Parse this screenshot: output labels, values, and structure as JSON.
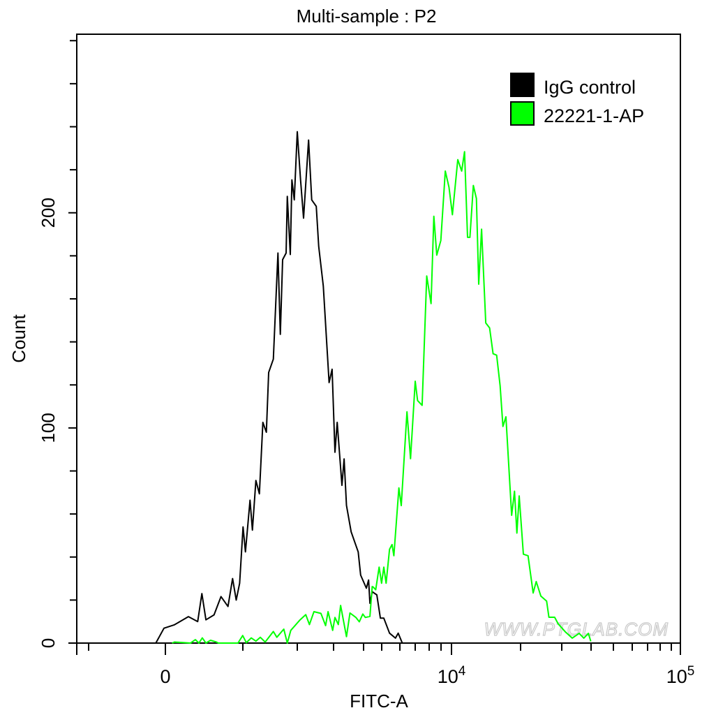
{
  "chart_data": {
    "type": "line",
    "title": "Multi-sample : P2",
    "xlabel": "FITC-A",
    "ylabel": "Count",
    "x_scale": "biexponential",
    "ylim": [
      0,
      283
    ],
    "xlim": [
      -1200,
      100000
    ],
    "grid": false,
    "legend_position": "top-right",
    "y_ticks_major": [
      0,
      100,
      200
    ],
    "y_tick_labels": [
      "0",
      "100",
      "200"
    ],
    "y_ticks_minor": [
      20,
      40,
      60,
      80,
      120,
      140,
      160,
      180,
      220,
      240,
      260,
      280
    ],
    "x_ticks_major": [
      0,
      10000,
      100000
    ],
    "x_tick_labels": [
      {
        "base": "0",
        "exp": ""
      },
      {
        "base": "10",
        "exp": "4"
      },
      {
        "base": "10",
        "exp": "5"
      }
    ],
    "x_ticks_minor": [
      -1000,
      1000,
      2000,
      3000,
      4000,
      5000,
      6000,
      7000,
      8000,
      9000,
      20000,
      30000,
      40000,
      50000,
      60000,
      70000,
      80000,
      90000
    ],
    "watermark": "WWW.PTGLAB.COM",
    "series": [
      {
        "name": "IgG control",
        "color": "#000000",
        "x": [
          -125,
          -18,
          117,
          297,
          417,
          471,
          523,
          628,
          718,
          808,
          868,
          914,
          959,
          1004,
          1047,
          1132,
          1176,
          1240,
          1304,
          1368,
          1432,
          1474,
          1560,
          1645,
          1688,
          1731,
          1795,
          1817,
          1872,
          1901,
          1945,
          2000,
          2075,
          2145,
          2270,
          2350,
          2473,
          2540,
          2675,
          2855,
          2952,
          3040,
          3107,
          3250,
          3320,
          3395,
          3550,
          3800,
          3890,
          4140,
          4255,
          4325,
          4450,
          4710,
          4920,
          5105,
          5410,
          5740,
          5900,
          6150
        ],
        "y": [
          0,
          6.9,
          8.5,
          12.3,
          10,
          23,
          10.8,
          13.1,
          21.6,
          17,
          30,
          20,
          27.8,
          54,
          42.4,
          66.4,
          52.5,
          75.6,
          69.4,
          102.6,
          98,
          125.8,
          132,
          181.3,
          143.5,
          178.2,
          181.3,
          207.6,
          180.6,
          215.3,
          206,
          237.7,
          215.3,
          197.5,
          233.8,
          206,
          203,
          184.4,
          165.9,
          121.1,
          127.3,
          88.7,
          102.6,
          73.3,
          85.6,
          64,
          51.7,
          42.4,
          31.6,
          25.5,
          29.3,
          18.5,
          23.9,
          22.4,
          11.6,
          11.6,
          4.6,
          2.3,
          4.6,
          0
        ]
      },
      {
        "name": "22221-1-AP",
        "color": "#00FF00",
        "x": [
          87,
          117,
          324,
          387,
          432,
          477,
          523,
          583,
          658,
          685,
          937,
          998,
          1064,
          1154,
          1240,
          1321,
          1410,
          1560,
          1624,
          1753,
          1817,
          1881,
          2063,
          2200,
          2290,
          2410,
          2605,
          2745,
          2820,
          2970,
          3040,
          3140,
          3210,
          3395,
          3510,
          3715,
          3840,
          3970,
          4085,
          4325,
          4450,
          4510,
          4645,
          4845,
          4990,
          5105,
          5225,
          5410,
          5545,
          5650,
          5940,
          6085,
          6445,
          6680,
          7000,
          7160,
          7480,
          7815,
          8150,
          8380,
          8630,
          8980,
          9395,
          9750,
          10090,
          10650,
          11080,
          11400,
          11750,
          12030,
          12450,
          12840,
          13140,
          13520,
          14100,
          14660,
          15180,
          15730,
          16290,
          16750,
          17260,
          18290,
          18820,
          19270,
          19720,
          20560,
          21520,
          22630,
          23330,
          24430,
          25850,
          26440,
          27970,
          28940,
          31030,
          33240,
          35590,
          37260,
          38970,
          39890
        ],
        "y": [
          0,
          0.5,
          0,
          1.6,
          0,
          2.4,
          0,
          1.3,
          0.5,
          0,
          0,
          3.5,
          0.2,
          2.4,
          0.9,
          2.7,
          0.5,
          5.4,
          2.7,
          6.5,
          0,
          5.9,
          10.8,
          13.2,
          8.6,
          14.6,
          13.8,
          8.1,
          14.6,
          5.9,
          11.9,
          8.6,
          17.5,
          3,
          14,
          11.9,
          9.9,
          13.5,
          11.9,
          12.4,
          26.3,
          26,
          24.8,
          35.3,
          27.8,
          35.3,
          27.8,
          43.6,
          45.8,
          40.6,
          72.1,
          63.9,
          107.5,
          85.7,
          121.7,
          112.7,
          110.5,
          170.6,
          157.8,
          198.4,
          180.3,
          187.1,
          219.4,
          211.9,
          199.1,
          224.7,
          219.4,
          228.4,
          188.6,
          188.6,
          212.7,
          206.6,
          166.8,
          192.4,
          148.8,
          146.5,
          134.5,
          133.8,
          119.5,
          100.7,
          105.2,
          59.4,
          70.6,
          51.1,
          68.4,
          41.3,
          40.6,
          23.3,
          28.6,
          21.8,
          19.5,
          12,
          12,
          9,
          5.3,
          2.3,
          4.5,
          2.3,
          4.5,
          0.8
        ]
      }
    ]
  }
}
